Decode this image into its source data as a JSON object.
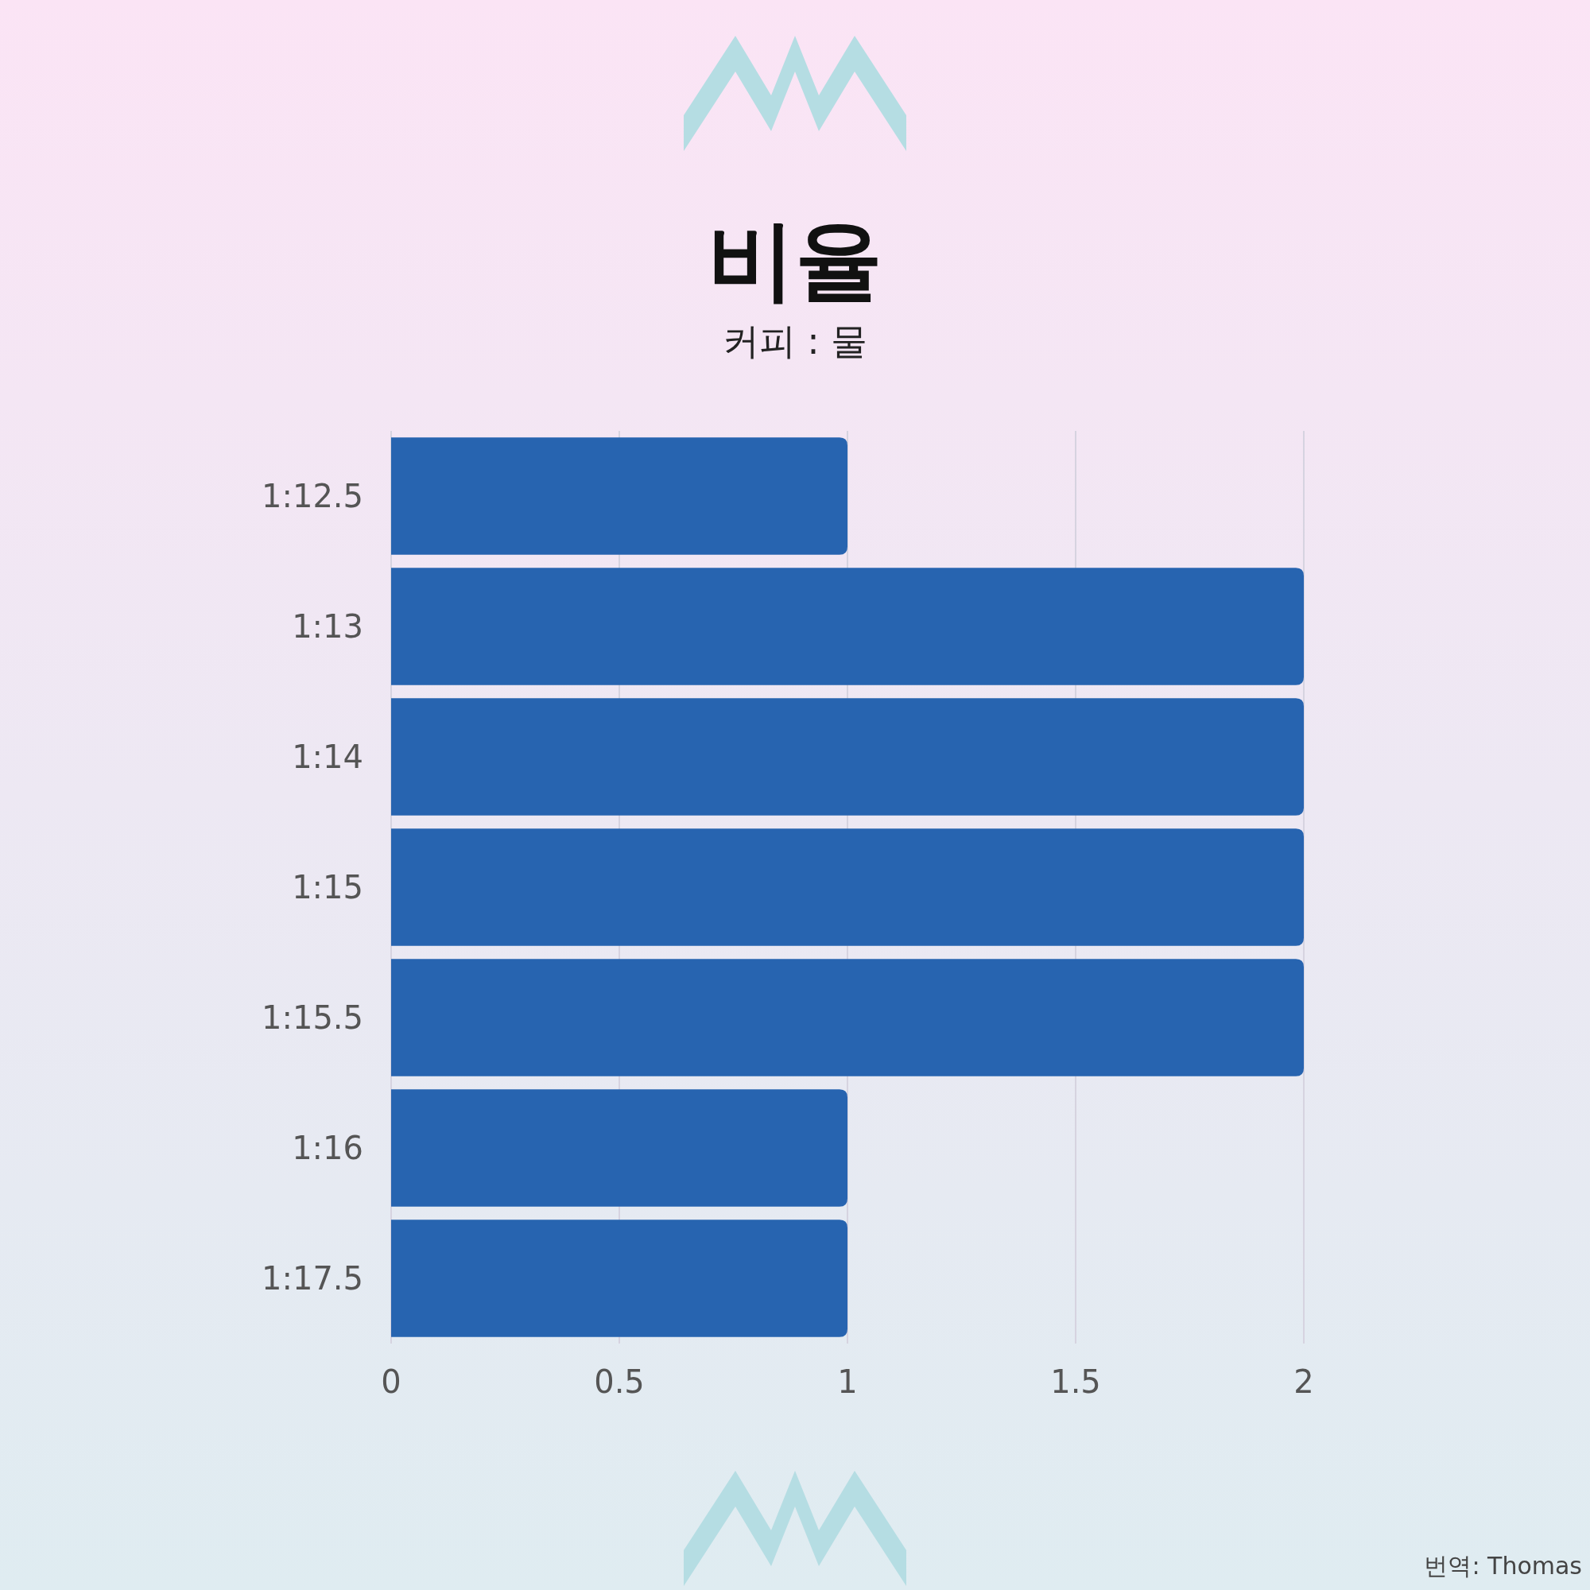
{
  "chart_data": {
    "type": "bar",
    "orientation": "horizontal",
    "title": "비율",
    "subtitle": "커피 : 물",
    "categories": [
      "1:12.5",
      "1:13",
      "1:14",
      "1:15",
      "1:15.5",
      "1:16",
      "1:17.5"
    ],
    "values": [
      1,
      2,
      2,
      2,
      2,
      1,
      1
    ],
    "color": "#2764b0",
    "xlim": [
      0,
      2
    ],
    "xticks": [
      0,
      0.5,
      1,
      1.5,
      2
    ],
    "grid": "x",
    "annotations": [
      "번역: Thomas"
    ]
  }
}
